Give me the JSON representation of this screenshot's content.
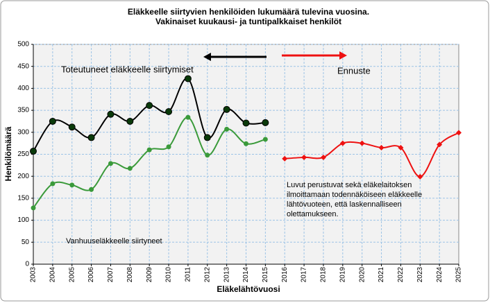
{
  "chart_data": {
    "type": "line",
    "title": "Eläkkeelle siirtyvien henkilöiden lukumäärä tulevina vuosina.",
    "subtitle": "Vakinaiset kuukausi- ja tuntipalkkaiset henkilöt",
    "y_label": "Henkilömäärä",
    "x_label": "Eläkelähtövuosi",
    "categories": [
      "2003",
      "2004",
      "2005",
      "2006",
      "2007",
      "2008",
      "2009",
      "2010",
      "2011",
      "2012",
      "2013",
      "2014",
      "2015",
      "2016",
      "2017",
      "2018",
      "2019",
      "2020",
      "2021",
      "2022",
      "2023",
      "2024",
      "2025"
    ],
    "series": [
      {
        "color": "#000000",
        "marker": "circle",
        "values": [
          257,
          325,
          312,
          288,
          341,
          325,
          361,
          347,
          422,
          288,
          352,
          321,
          322,
          null,
          null,
          null,
          null,
          null,
          null,
          null,
          null,
          null,
          null
        ]
      },
      {
        "color": "#3a9a3a",
        "marker": "dot",
        "values": [
          128,
          183,
          180,
          170,
          229,
          218,
          260,
          267,
          334,
          248,
          307,
          274,
          284,
          null,
          null,
          null,
          null,
          null,
          null,
          null,
          null,
          null,
          null
        ]
      },
      {
        "color": "#ee1111",
        "marker": "diamond",
        "values": [
          null,
          null,
          null,
          null,
          null,
          null,
          null,
          null,
          null,
          null,
          null,
          null,
          null,
          240,
          243,
          243,
          275,
          275,
          265,
          265,
          199,
          272,
          299
        ]
      }
    ],
    "ylim": [
      0,
      500
    ],
    "yticks": [
      0,
      50,
      100,
      150,
      200,
      250,
      300,
      350,
      400,
      450,
      500
    ],
    "grid": true,
    "annotations": {
      "realized": "Toteutuneet eläkkeelle siirtymiset",
      "forecast": "Ennuste",
      "old_age": "Vanhuuseläkkeelle siirtyneet",
      "note": [
        "Luvut perustuvat sekä eläkelaitoksen",
        "ilmoittamaan todennäköiseen eläkkeelle",
        "lähtövuoteen, että laskennalliseen",
        "olettamukseen."
      ]
    }
  }
}
